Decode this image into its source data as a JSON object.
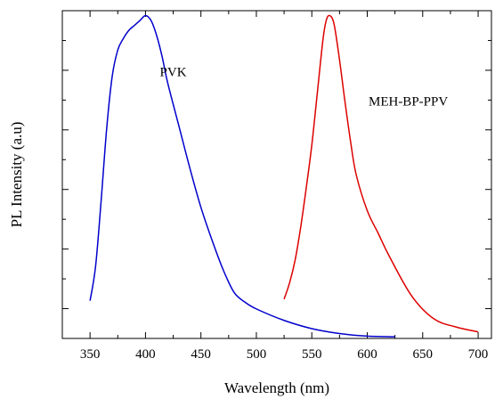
{
  "chart_data": {
    "type": "line",
    "xlabel": "Wavelength (nm)",
    "ylabel": "PL Intensity  (a.u)",
    "xlim": [
      325,
      712
    ],
    "ylim": [
      0,
      1.0
    ],
    "x_ticks": [
      350,
      400,
      450,
      500,
      550,
      600,
      650,
      700
    ],
    "x_tick_labels": [
      "350",
      "400",
      "450",
      "500",
      "550",
      "600",
      "650",
      "700"
    ],
    "y_tick_labels_shown": false,
    "grid": false,
    "legend": "inline labels next to curves",
    "series": [
      {
        "name": "PVK",
        "color": "#0000cc",
        "x": [
          350,
          355,
          360,
          365,
          370,
          375,
          380,
          385,
          390,
          395,
          400,
          405,
          410,
          415,
          420,
          430,
          440,
          450,
          460,
          470,
          480,
          490,
          500,
          525,
          550,
          575,
          600,
          625
        ],
        "y": [
          0.115,
          0.22,
          0.42,
          0.64,
          0.8,
          0.88,
          0.915,
          0.94,
          0.955,
          0.97,
          0.985,
          0.97,
          0.925,
          0.86,
          0.78,
          0.65,
          0.52,
          0.4,
          0.3,
          0.21,
          0.14,
          0.11,
          0.09,
          0.055,
          0.03,
          0.015,
          0.007,
          0.005
        ]
      },
      {
        "name": "MEH-BP-PPV",
        "color": "#dd0000",
        "x": [
          525,
          530,
          535,
          540,
          545,
          550,
          555,
          560,
          563,
          566,
          570,
          575,
          580,
          585,
          590,
          600,
          610,
          620,
          640,
          660,
          680,
          700
        ],
        "y": [
          0.12,
          0.17,
          0.24,
          0.34,
          0.46,
          0.59,
          0.75,
          0.91,
          0.97,
          0.985,
          0.96,
          0.85,
          0.72,
          0.6,
          0.5,
          0.39,
          0.32,
          0.25,
          0.13,
          0.06,
          0.035,
          0.02
        ]
      }
    ],
    "annotations": [
      {
        "text": "PVK",
        "x": 425,
        "y": 0.8
      },
      {
        "text": "MEH-BP-PPV",
        "x": 637,
        "y": 0.71
      }
    ]
  }
}
